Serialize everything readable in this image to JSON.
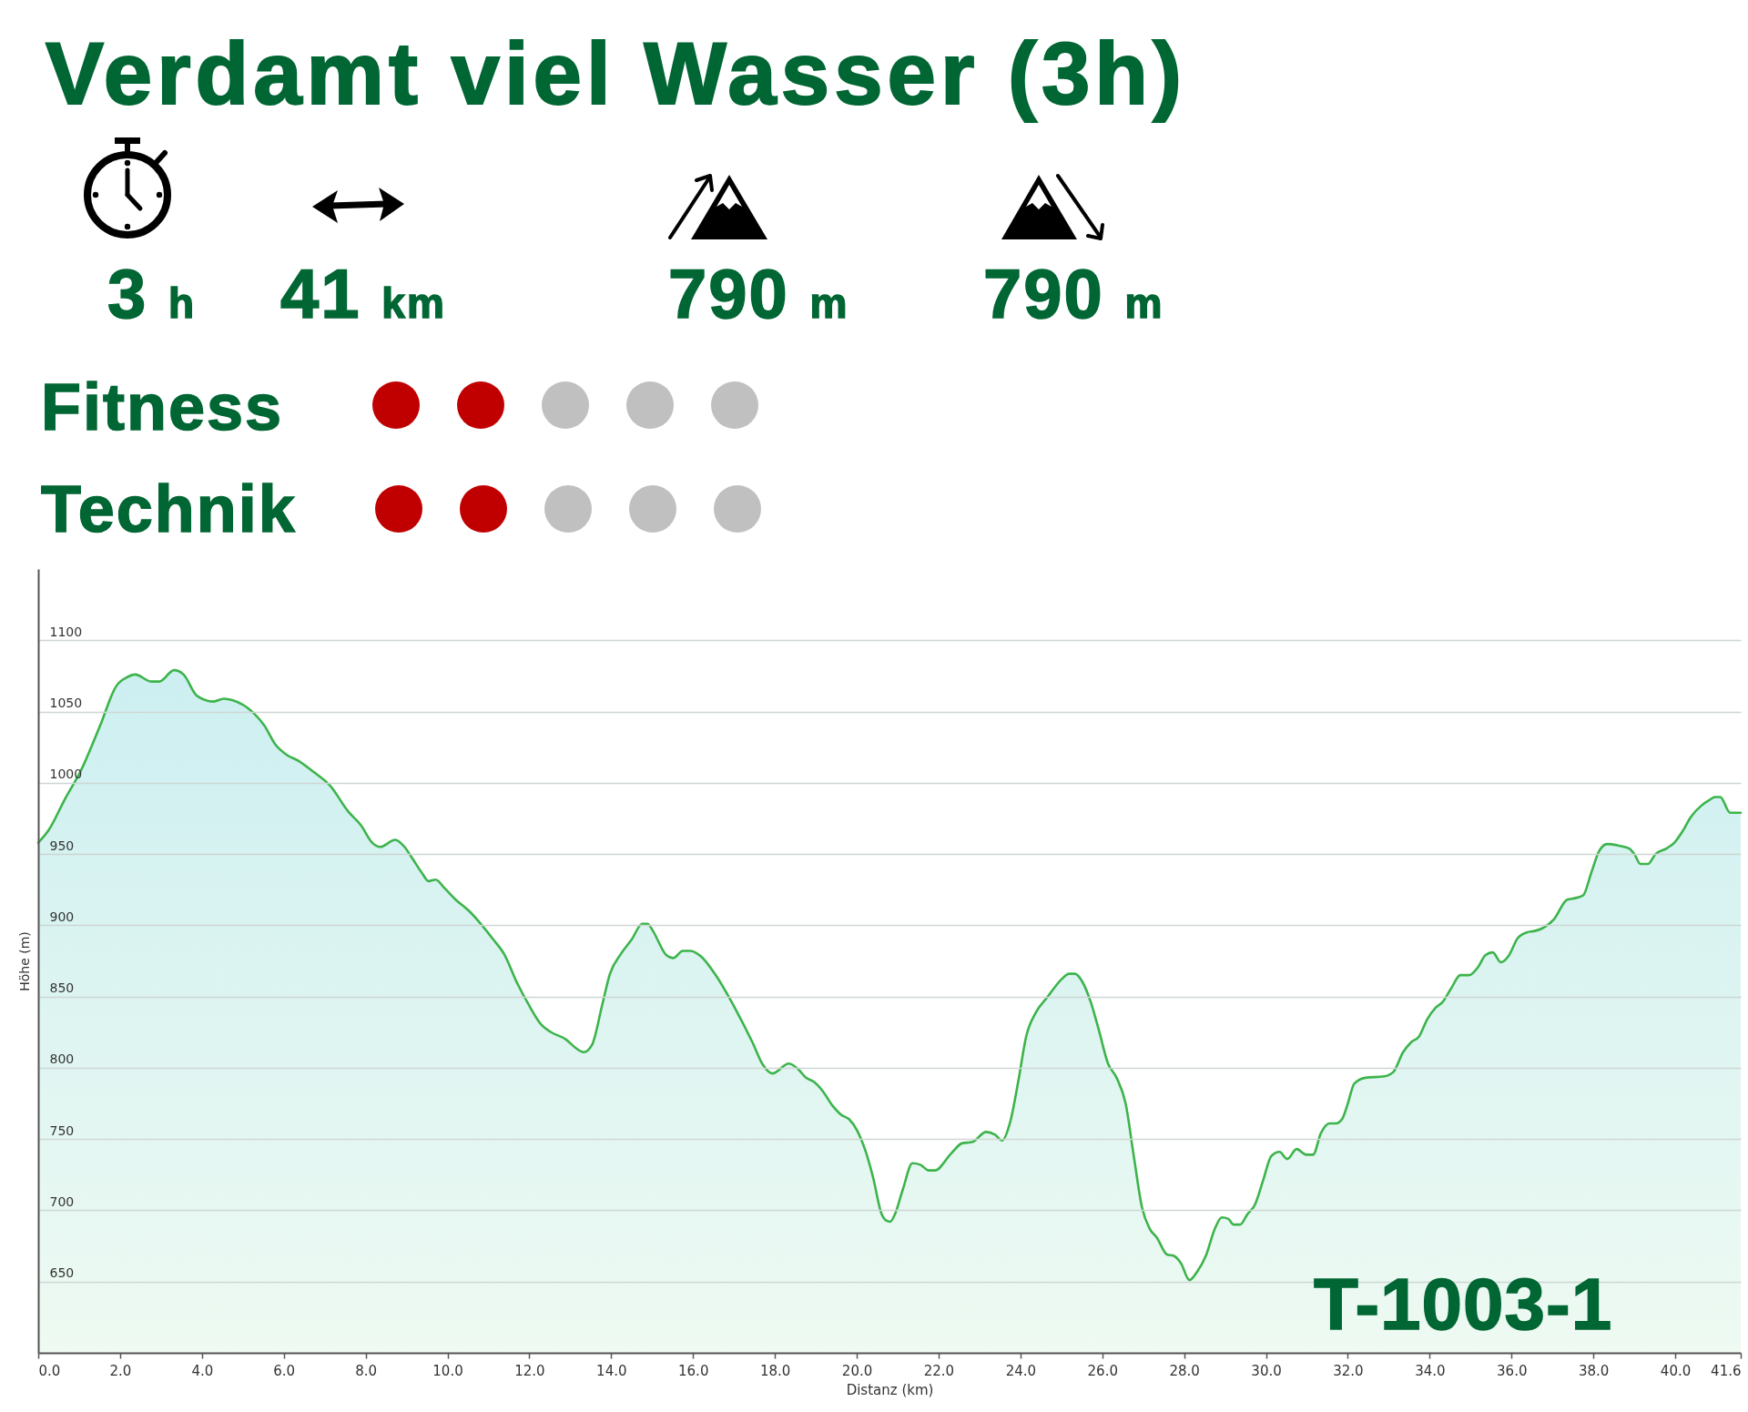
{
  "chart_data": {
    "type": "area",
    "title": "Verdamt viel Wasser (3h)",
    "xlabel": "Distanz (km)",
    "ylabel": "Höhe (m)",
    "annotations": [
      "3 h",
      "41 km",
      "790 m",
      "790 m",
      "Fitness",
      "Technik",
      "T-1003-1"
    ],
    "x": [
      0,
      0.26,
      0.66,
      1.05,
      1.51,
      1.91,
      2.17,
      2.37,
      2.76,
      2.96,
      3.32,
      3.55,
      3.88,
      4.28,
      4.54,
      4.74,
      5.26,
      5.53,
      5.79,
      6.05,
      6.38,
      6.71,
      7.13,
      7.57,
      7.89,
      8.16,
      8.36,
      8.72,
      8.95,
      9.14,
      9.37,
      9.54,
      9.71,
      9.93,
      10.2,
      10.53,
      11.12,
      11.38,
      11.71,
      11.97,
      12.3,
      12.53,
      12.89,
      13.13,
      13.33,
      13.53,
      13.78,
      13.97,
      14.24,
      14.5,
      14.76,
      14.89,
      15.02,
      15.35,
      15.52,
      15.75,
      15.94,
      16.2,
      16.53,
      17.06,
      17.45,
      17.71,
      17.94,
      18.34,
      18.57,
      18.76,
      18.96,
      19.16,
      19.42,
      19.62,
      19.81,
      20.01,
      20.21,
      20.4,
      20.6,
      20.71,
      20.82,
      20.93,
      21.13,
      21.36,
      21.55,
      21.76,
      21.91,
      22.31,
      22.57,
      22.83,
      23.16,
      23.38,
      23.55,
      23.75,
      23.95,
      24.14,
      24.38,
      24.67,
      25.0,
      25.19,
      25.33,
      25.52,
      25.72,
      25.92,
      26.14,
      26.35,
      26.57,
      26.77,
      26.97,
      27.16,
      27.33,
      27.58,
      27.75,
      27.92,
      28.13,
      28.32,
      28.53,
      28.75,
      28.92,
      29.08,
      29.21,
      29.37,
      29.54,
      29.73,
      29.93,
      30.13,
      30.33,
      30.52,
      30.75,
      30.98,
      31.15,
      31.34,
      31.55,
      31.71,
      31.86,
      31.99,
      32.16,
      32.43,
      32.89,
      33.11,
      33.35,
      33.55,
      33.74,
      33.94,
      34.14,
      34.31,
      34.53,
      34.75,
      34.96,
      35.19,
      35.36,
      35.54,
      35.74,
      35.94,
      36.15,
      36.37,
      36.57,
      36.76,
      37.03,
      37.36,
      37.55,
      37.75,
      37.95,
      38.14,
      38.34,
      38.6,
      38.87,
      39.0,
      39.15,
      39.33,
      39.52,
      39.79,
      39.98,
      40.18,
      40.38,
      40.64,
      40.84,
      40.97,
      41.1,
      41.34,
      41.6
    ],
    "series": [
      {
        "color": "#3cb44b",
        "values": [
          958,
          967,
          989,
          1009,
          1040,
          1068,
          1074,
          1076,
          1071,
          1071,
          1079,
          1076,
          1061,
          1057,
          1059,
          1058,
          1049,
          1040,
          1027,
          1020,
          1015,
          1008,
          998,
          980,
          970,
          958,
          955,
          960,
          955,
          947,
          937,
          931,
          932,
          926,
          918,
          910,
          890,
          880,
          859,
          845,
          830,
          825,
          820,
          814,
          811,
          816,
          844,
          866,
          880,
          890,
          901,
          901,
          896,
          879,
          877,
          882,
          882,
          878,
          866,
          840,
          818,
          802,
          796,
          803,
          799,
          793,
          790,
          784,
          773,
          767,
          764,
          756,
          742,
          723,
          698,
          693,
          692,
          697,
          715,
          733,
          732,
          728,
          728,
          740,
          747,
          748,
          755,
          753,
          749,
          762,
          791,
          822,
          839,
          850,
          862,
          866,
          866,
          860,
          846,
          826,
          803,
          793,
          775,
          738,
          702,
          687,
          681,
          669,
          668,
          663,
          651,
          657,
          668,
          687,
          695,
          694,
          690,
          690,
          697,
          704,
          721,
          738,
          741,
          736,
          743,
          739,
          739,
          754,
          761,
          761,
          764,
          774,
          789,
          793,
          794,
          797,
          811,
          818,
          822,
          834,
          842,
          846,
          856,
          865,
          865,
          871,
          879,
          881,
          874,
          879,
          891,
          895,
          896,
          898,
          904,
          918,
          919,
          921,
          937,
          952,
          957,
          956,
          954,
          950,
          943,
          943,
          950,
          954,
          958,
          966,
          976,
          984,
          988,
          990,
          990,
          979,
          979
        ]
      }
    ],
    "xlim": [
      0,
      41.6
    ],
    "ylim": [
      600,
      1150
    ],
    "xticks": [
      {
        "value": 0,
        "label": "0.0"
      },
      {
        "value": 2,
        "label": "2.0"
      },
      {
        "value": 4,
        "label": "4.0"
      },
      {
        "value": 6,
        "label": "6.0"
      },
      {
        "value": 8,
        "label": "8.0"
      },
      {
        "value": 10,
        "label": "10.0"
      },
      {
        "value": 12,
        "label": "12.0"
      },
      {
        "value": 14,
        "label": "14.0"
      },
      {
        "value": 16,
        "label": "16.0"
      },
      {
        "value": 18,
        "label": "18.0"
      },
      {
        "value": 20,
        "label": "20.0"
      },
      {
        "value": 22,
        "label": "22.0"
      },
      {
        "value": 24,
        "label": "24.0"
      },
      {
        "value": 26,
        "label": "26.0"
      },
      {
        "value": 28,
        "label": "28.0"
      },
      {
        "value": 30,
        "label": "30.0"
      },
      {
        "value": 32,
        "label": "32.0"
      },
      {
        "value": 34,
        "label": "34.0"
      },
      {
        "value": 36,
        "label": "36.0"
      },
      {
        "value": 38,
        "label": "38.0"
      },
      {
        "value": 40,
        "label": "40.0"
      },
      {
        "value": 41.6,
        "label": "41.6"
      }
    ],
    "yticks": [
      650,
      700,
      750,
      800,
      850,
      900,
      950,
      1000,
      1050,
      1100
    ],
    "grid": "y"
  }
}
